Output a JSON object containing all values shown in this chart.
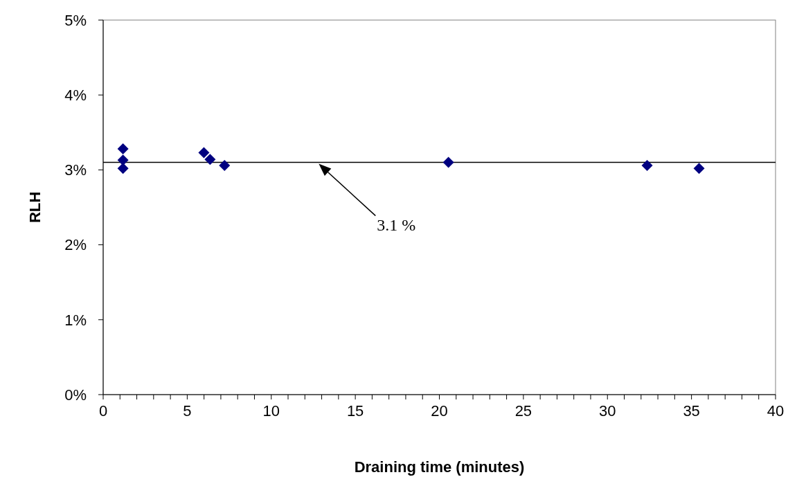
{
  "chart_data": {
    "type": "scatter",
    "xlabel": "Draining time (minutes)",
    "ylabel": "RLH",
    "xlim": [
      0,
      40
    ],
    "ylim": [
      0,
      5
    ],
    "xticks": [
      0,
      {
        "value": 1,
        "label": null
      },
      {
        "value": 2,
        "label": null
      },
      {
        "value": 3,
        "label": null
      },
      {
        "value": 4,
        "label": null
      },
      5,
      {
        "value": 6,
        "label": null
      },
      {
        "value": 7,
        "label": null
      },
      {
        "value": 8,
        "label": null
      },
      {
        "value": 9,
        "label": null
      },
      10,
      {
        "value": 11,
        "label": null
      },
      {
        "value": 12,
        "label": null
      },
      {
        "value": 13,
        "label": null
      },
      {
        "value": 14,
        "label": null
      },
      15,
      {
        "value": 16,
        "label": null
      },
      {
        "value": 17,
        "label": null
      },
      {
        "value": 18,
        "label": null
      },
      {
        "value": 19,
        "label": null
      },
      20,
      {
        "value": 21,
        "label": null
      },
      {
        "value": 22,
        "label": null
      },
      {
        "value": 23,
        "label": null
      },
      {
        "value": 24,
        "label": null
      },
      25,
      {
        "value": 26,
        "label": null
      },
      {
        "value": 27,
        "label": null
      },
      {
        "value": 28,
        "label": null
      },
      {
        "value": 29,
        "label": null
      },
      30,
      {
        "value": 31,
        "label": null
      },
      {
        "value": 32,
        "label": null
      },
      {
        "value": 33,
        "label": null
      },
      {
        "value": 34,
        "label": null
      },
      35,
      {
        "value": 36,
        "label": null
      },
      {
        "value": 37,
        "label": null
      },
      {
        "value": 38,
        "label": null
      },
      {
        "value": 39,
        "label": null
      },
      40
    ],
    "yticks": [
      {
        "value": 0,
        "label": "0%"
      },
      {
        "value": 1,
        "label": "1%"
      },
      {
        "value": 2,
        "label": "2%"
      },
      {
        "value": 3,
        "label": "3%"
      },
      {
        "value": 4,
        "label": "4%"
      },
      {
        "value": 5,
        "label": "5%"
      }
    ],
    "marker": "diamond",
    "grid": false,
    "series": [
      {
        "color": "#000080",
        "x": [
          1.18,
          1.18,
          1.18,
          5.99,
          6.36,
          7.22,
          20.54,
          32.36,
          35.45
        ],
        "values": [
          3.28,
          3.13,
          3.02,
          3.23,
          3.14,
          3.06,
          3.1,
          3.06,
          3.02
        ]
      }
    ],
    "ref_lines": [
      {
        "axis": "y",
        "value": 3.1,
        "color": "#000000",
        "label": "3.1 %"
      }
    ]
  }
}
